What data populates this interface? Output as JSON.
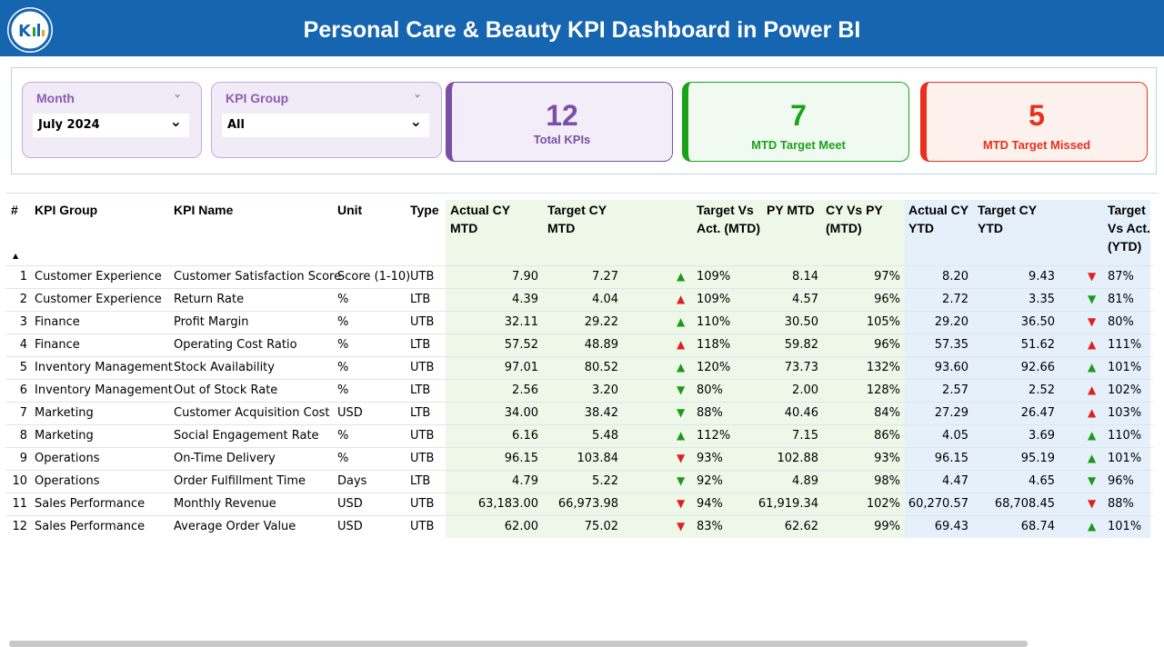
{
  "header": {
    "title": "Personal Care & Beauty KPI Dashboard in Power BI"
  },
  "slicers": [
    {
      "label": "Month",
      "value": "July 2024"
    },
    {
      "label": "KPI Group",
      "value": "All"
    }
  ],
  "cards": [
    {
      "value": "12",
      "label": "Total KPIs",
      "color": "#7b4fa6"
    },
    {
      "value": "7",
      "label": "MTD Target Meet",
      "color": "#1aa31a"
    },
    {
      "value": "5",
      "label": "MTD Target Missed",
      "color": "#e8301c"
    }
  ],
  "table": {
    "columns": [
      "#",
      "KPI Group",
      "KPI Name",
      "Unit",
      "Type",
      "Actual CY MTD",
      "Target CY MTD",
      "Target Vs Act. (MTD)",
      "PY MTD",
      "CY Vs PY (MTD)",
      "Actual CY YTD",
      "Target CY YTD",
      "Target Vs Act. (YTD)"
    ],
    "rows": [
      [
        "1",
        "Customer Experience",
        "Customer Satisfaction Score",
        "Score (1-10)",
        "UTB",
        "7.90",
        "7.27",
        "109%",
        "8.14",
        "97%",
        "8.20",
        "9.43",
        "87%"
      ],
      [
        "2",
        "Customer Experience",
        "Return Rate",
        "%",
        "LTB",
        "4.39",
        "4.04",
        "109%",
        "4.57",
        "96%",
        "2.72",
        "3.35",
        "81%"
      ],
      [
        "3",
        "Finance",
        "Profit Margin",
        "%",
        "UTB",
        "32.11",
        "29.22",
        "110%",
        "30.50",
        "105%",
        "29.20",
        "36.50",
        "80%"
      ],
      [
        "4",
        "Finance",
        "Operating Cost Ratio",
        "%",
        "LTB",
        "57.52",
        "48.89",
        "118%",
        "59.82",
        "96%",
        "57.35",
        "51.62",
        "111%"
      ],
      [
        "5",
        "Inventory Management",
        "Stock Availability",
        "%",
        "UTB",
        "97.01",
        "80.52",
        "120%",
        "73.73",
        "132%",
        "93.60",
        "92.66",
        "101%"
      ],
      [
        "6",
        "Inventory Management",
        "Out of Stock Rate",
        "%",
        "LTB",
        "2.56",
        "3.20",
        "80%",
        "2.00",
        "128%",
        "2.57",
        "2.52",
        "102%"
      ],
      [
        "7",
        "Marketing",
        "Customer Acquisition Cost",
        "USD",
        "LTB",
        "34.00",
        "38.42",
        "88%",
        "40.46",
        "84%",
        "27.29",
        "26.47",
        "103%"
      ],
      [
        "8",
        "Marketing",
        "Social Engagement Rate",
        "%",
        "UTB",
        "6.16",
        "5.48",
        "112%",
        "7.15",
        "86%",
        "4.05",
        "3.69",
        "110%"
      ],
      [
        "9",
        "Operations",
        "On-Time Delivery",
        "%",
        "UTB",
        "96.15",
        "103.84",
        "93%",
        "102.88",
        "93%",
        "96.15",
        "95.19",
        "101%"
      ],
      [
        "10",
        "Operations",
        "Order Fulfillment Time",
        "Days",
        "LTB",
        "4.79",
        "5.22",
        "92%",
        "4.89",
        "98%",
        "4.47",
        "4.65",
        "96%"
      ],
      [
        "11",
        "Sales Performance",
        "Monthly Revenue",
        "USD",
        "UTB",
        "63,183.00",
        "66,973.98",
        "94%",
        "61,919.34",
        "102%",
        "60,270.57",
        "68,708.45",
        "88%"
      ],
      [
        "12",
        "Sales Performance",
        "Average Order Value",
        "USD",
        "UTB",
        "62.00",
        "75.02",
        "83%",
        "62.62",
        "99%",
        "69.43",
        "68.74",
        "101%"
      ]
    ],
    "mtd_arrows": [
      [
        "up",
        "#1a9a1a"
      ],
      [
        "up",
        "#e02020"
      ],
      [
        "up",
        "#1a9a1a"
      ],
      [
        "up",
        "#e02020"
      ],
      [
        "up",
        "#1a9a1a"
      ],
      [
        "down",
        "#1a9a1a"
      ],
      [
        "down",
        "#1a9a1a"
      ],
      [
        "up",
        "#1a9a1a"
      ],
      [
        "down",
        "#e02020"
      ],
      [
        "down",
        "#1a9a1a"
      ],
      [
        "down",
        "#e02020"
      ],
      [
        "down",
        "#e02020"
      ]
    ],
    "ytd_arrows": [
      [
        "down",
        "#e02020"
      ],
      [
        "down",
        "#1a9a1a"
      ],
      [
        "down",
        "#e02020"
      ],
      [
        "up",
        "#e02020"
      ],
      [
        "up",
        "#1a9a1a"
      ],
      [
        "up",
        "#e02020"
      ],
      [
        "up",
        "#e02020"
      ],
      [
        "up",
        "#1a9a1a"
      ],
      [
        "up",
        "#1a9a1a"
      ],
      [
        "down",
        "#1a9a1a"
      ],
      [
        "down",
        "#e02020"
      ],
      [
        "up",
        "#1a9a1a"
      ]
    ]
  }
}
